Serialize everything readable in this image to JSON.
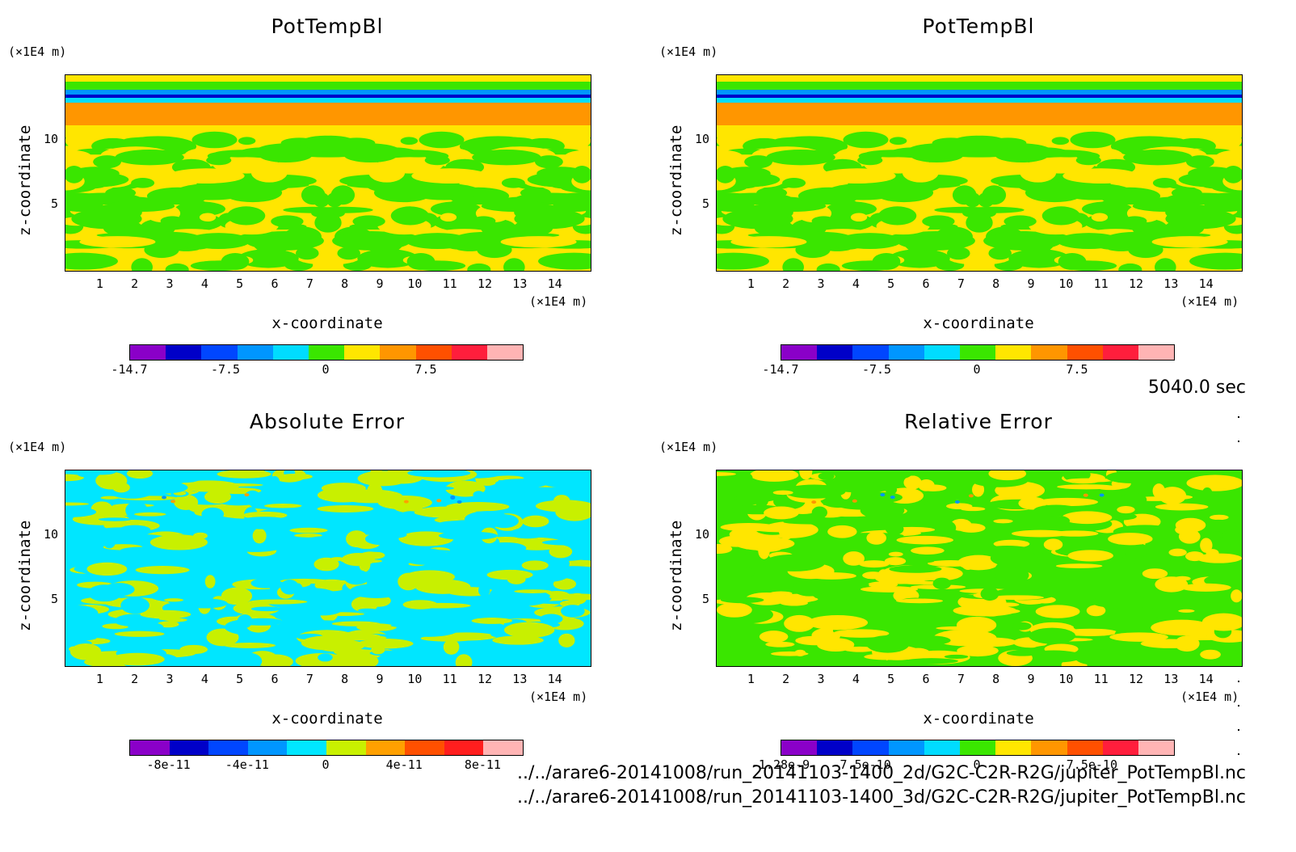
{
  "chart_data": [
    {
      "type": "heatmap",
      "title": "PotTempBl",
      "xlabel": "x-coordinate",
      "ylabel": "z-coordinate",
      "x_unit": "(×1E4 m)",
      "y_unit": "(×1E4 m)",
      "xlim": [
        0,
        15
      ],
      "ylim": [
        0,
        15
      ],
      "x_ticks": [
        "1",
        "2",
        "3",
        "4",
        "5",
        "6",
        "7",
        "8",
        "9",
        "10",
        "11",
        "12",
        "13",
        "14"
      ],
      "y_ticks": [
        "5",
        "10"
      ],
      "colorbar": {
        "colors": [
          "#8a00c8",
          "#0000c8",
          "#0046ff",
          "#0096ff",
          "#00dcff",
          "#3ae600",
          "#ffe600",
          "#ff9600",
          "#ff5000",
          "#ff1e3c",
          "#ffb4b4"
        ],
        "labels": [
          "-14.7",
          "-7.5",
          "0",
          "7.5"
        ],
        "label_values": [
          -14.7,
          -7.5,
          0,
          7.5
        ],
        "range": [
          -14.7,
          14.7
        ]
      },
      "field_palette": [
        "#ffe600",
        "#3ae600",
        "#ff9600",
        "#0096ff",
        "#00dcff",
        "#0000c8",
        "#ff5000"
      ]
    },
    {
      "type": "heatmap",
      "title": "PotTempBl",
      "xlabel": "x-coordinate",
      "ylabel": "z-coordinate",
      "x_unit": "(×1E4 m)",
      "y_unit": "(×1E4 m)",
      "xlim": [
        0,
        15
      ],
      "ylim": [
        0,
        15
      ],
      "x_ticks": [
        "1",
        "2",
        "3",
        "4",
        "5",
        "6",
        "7",
        "8",
        "9",
        "10",
        "11",
        "12",
        "13",
        "14"
      ],
      "y_ticks": [
        "5",
        "10"
      ],
      "colorbar": {
        "colors": [
          "#8a00c8",
          "#0000c8",
          "#0046ff",
          "#0096ff",
          "#00dcff",
          "#3ae600",
          "#ffe600",
          "#ff9600",
          "#ff5000",
          "#ff1e3c",
          "#ffb4b4"
        ],
        "labels": [
          "-14.7",
          "-7.5",
          "0",
          "7.5"
        ],
        "label_values": [
          -14.7,
          -7.5,
          0,
          7.5
        ],
        "range": [
          -14.7,
          14.7
        ]
      },
      "field_palette": [
        "#ffe600",
        "#3ae600",
        "#ff9600",
        "#0096ff",
        "#00dcff",
        "#0000c8",
        "#ff5000"
      ]
    },
    {
      "type": "heatmap",
      "title": "Absolute Error",
      "xlabel": "x-coordinate",
      "ylabel": "z-coordinate",
      "x_unit": "(×1E4 m)",
      "y_unit": "(×1E4 m)",
      "xlim": [
        0,
        15
      ],
      "ylim": [
        0,
        15
      ],
      "x_ticks": [
        "1",
        "2",
        "3",
        "4",
        "5",
        "6",
        "7",
        "8",
        "9",
        "10",
        "11",
        "12",
        "13",
        "14"
      ],
      "y_ticks": [
        "5",
        "10"
      ],
      "colorbar": {
        "colors": [
          "#8a00c8",
          "#0000c8",
          "#0046ff",
          "#0096ff",
          "#00e6ff",
          "#c8f000",
          "#ffa000",
          "#ff5000",
          "#ff1e1e",
          "#ffb4b4"
        ],
        "labels": [
          "-8e-11",
          "-4e-11",
          "0",
          "4e-11",
          "8e-11"
        ],
        "label_values": [
          -8e-11,
          -4e-11,
          0,
          4e-11,
          8e-11
        ],
        "range": [
          -1e-10,
          1e-10
        ]
      },
      "field_palette": [
        "#00e6ff",
        "#c8f000",
        "#ffa000",
        "#0096ff"
      ]
    },
    {
      "type": "heatmap",
      "title": "Relative Error",
      "xlabel": "x-coordinate",
      "ylabel": "z-coordinate",
      "x_unit": "(×1E4 m)",
      "y_unit": "(×1E4 m)",
      "xlim": [
        0,
        15
      ],
      "ylim": [
        0,
        15
      ],
      "x_ticks": [
        "1",
        "2",
        "3",
        "4",
        "5",
        "6",
        "7",
        "8",
        "9",
        "10",
        "11",
        "12",
        "13",
        "14"
      ],
      "y_ticks": [
        "5",
        "10"
      ],
      "colorbar": {
        "colors": [
          "#8a00c8",
          "#0000c8",
          "#0046ff",
          "#0096ff",
          "#00dcff",
          "#3ae600",
          "#ffe600",
          "#ff9600",
          "#ff5000",
          "#ff1e3c",
          "#ffb4b4"
        ],
        "labels": [
          "-1.28e-9",
          "-7.5e-10",
          "0",
          "7.5e-10"
        ],
        "label_values": [
          -1.28e-09,
          -7.5e-10,
          0,
          7.5e-10
        ],
        "range": [
          -1.28e-09,
          1.28e-09
        ]
      },
      "field_palette": [
        "#3ae600",
        "#ffe600",
        "#ff9600",
        "#0096ff"
      ]
    }
  ],
  "footer": {
    "time": "5040.0 sec",
    "file1": "../../arare6-20141008/run_20141103-1400_2d/G2C-C2R-R2G/jupiter_PotTempBl.nc",
    "file2": "../../arare6-20141008/run_20141103-1400_3d/G2C-C2R-R2G/jupiter_PotTempBl.nc"
  }
}
